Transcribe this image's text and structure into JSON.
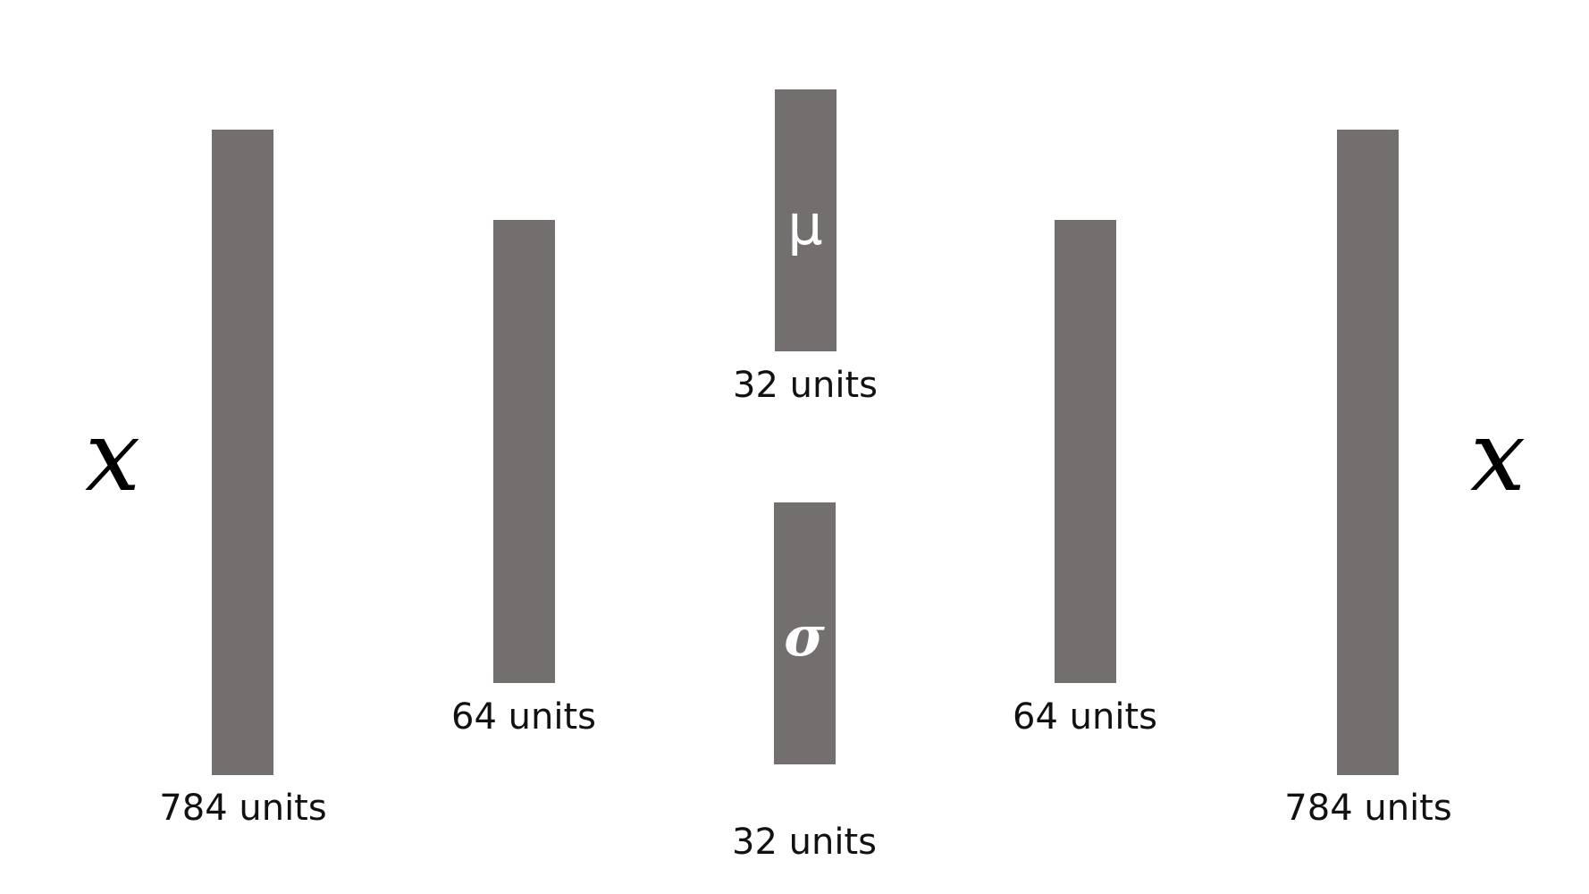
{
  "diagram": {
    "input_var": "x",
    "output_var": "x",
    "layers": {
      "input": {
        "units_label": "784 units"
      },
      "encoder_hidden": {
        "units_label": "64 units"
      },
      "mu": {
        "symbol": "μ",
        "units_label": "32 units"
      },
      "sigma": {
        "symbol": "σ",
        "units_label": "32 units"
      },
      "decoder_hidden": {
        "units_label": "64 units"
      },
      "output": {
        "units_label": "784 units"
      }
    },
    "colors": {
      "layer_fill": "#736f6e",
      "text": "#111111",
      "symbol_text": "#ffffff",
      "background": "#ffffff"
    }
  }
}
